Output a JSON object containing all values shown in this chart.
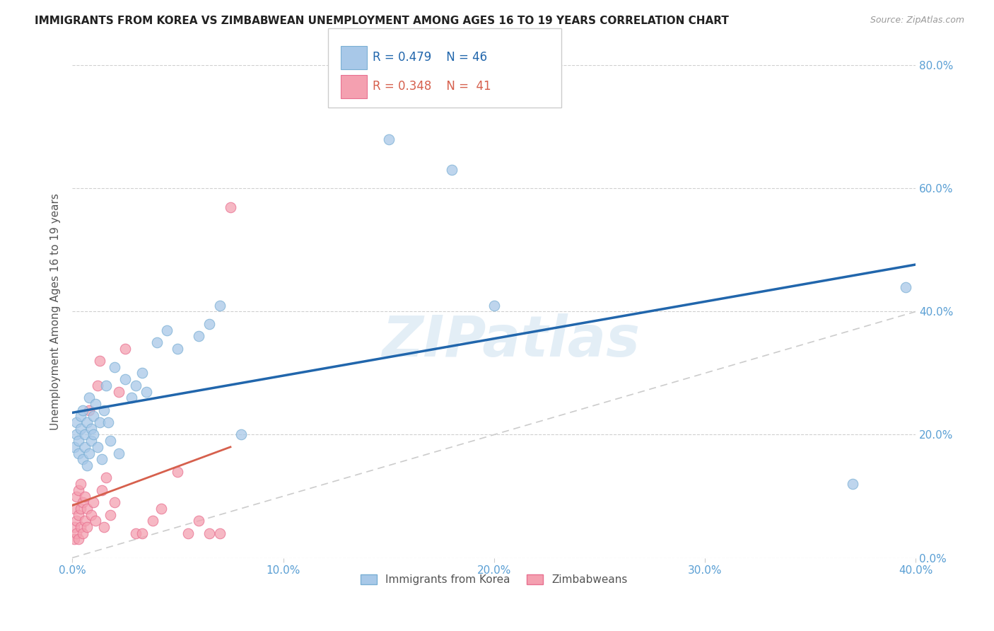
{
  "title": "IMMIGRANTS FROM KOREA VS ZIMBABWEAN UNEMPLOYMENT AMONG AGES 16 TO 19 YEARS CORRELATION CHART",
  "source": "Source: ZipAtlas.com",
  "ylabel": "Unemployment Among Ages 16 to 19 years",
  "xlabel_ticks": [
    "0.0%",
    "10.0%",
    "20.0%",
    "30.0%",
    "40.0%"
  ],
  "ylabel_ticks": [
    "0.0%",
    "20.0%",
    "40.0%",
    "60.0%",
    "80.0%"
  ],
  "xlim": [
    0.0,
    0.4
  ],
  "ylim": [
    0.0,
    0.8
  ],
  "legend_label1": "Immigrants from Korea",
  "legend_label2": "Zimbabweans",
  "R1": "0.479",
  "N1": "46",
  "R2": "0.348",
  "N2": "41",
  "color_blue": "#a8c8e8",
  "color_pink": "#f4a0b0",
  "color_blue_edge": "#7aafd4",
  "color_pink_edge": "#e87090",
  "color_line_blue": "#2166ac",
  "color_line_pink": "#d6604d",
  "color_diag": "#cccccc",
  "watermark": "ZIPatlas",
  "korea_x": [
    0.001,
    0.002,
    0.002,
    0.003,
    0.003,
    0.004,
    0.004,
    0.005,
    0.005,
    0.006,
    0.006,
    0.007,
    0.007,
    0.008,
    0.008,
    0.009,
    0.009,
    0.01,
    0.01,
    0.011,
    0.012,
    0.013,
    0.014,
    0.015,
    0.016,
    0.017,
    0.018,
    0.02,
    0.022,
    0.025,
    0.028,
    0.03,
    0.033,
    0.035,
    0.04,
    0.045,
    0.05,
    0.06,
    0.065,
    0.07,
    0.08,
    0.15,
    0.18,
    0.2,
    0.37,
    0.395
  ],
  "korea_y": [
    0.18,
    0.2,
    0.22,
    0.19,
    0.17,
    0.21,
    0.23,
    0.16,
    0.24,
    0.18,
    0.2,
    0.22,
    0.15,
    0.17,
    0.26,
    0.21,
    0.19,
    0.23,
    0.2,
    0.25,
    0.18,
    0.22,
    0.16,
    0.24,
    0.28,
    0.22,
    0.19,
    0.31,
    0.17,
    0.29,
    0.26,
    0.28,
    0.3,
    0.27,
    0.35,
    0.37,
    0.34,
    0.36,
    0.38,
    0.41,
    0.2,
    0.68,
    0.63,
    0.41,
    0.12,
    0.44
  ],
  "zimbabwe_x": [
    0.001,
    0.001,
    0.001,
    0.002,
    0.002,
    0.002,
    0.003,
    0.003,
    0.003,
    0.004,
    0.004,
    0.004,
    0.005,
    0.005,
    0.006,
    0.006,
    0.007,
    0.007,
    0.008,
    0.009,
    0.01,
    0.011,
    0.012,
    0.013,
    0.014,
    0.015,
    0.016,
    0.018,
    0.02,
    0.022,
    0.025,
    0.03,
    0.033,
    0.038,
    0.042,
    0.05,
    0.055,
    0.06,
    0.065,
    0.07,
    0.075
  ],
  "zimbabwe_y": [
    0.03,
    0.05,
    0.08,
    0.04,
    0.06,
    0.1,
    0.03,
    0.07,
    0.11,
    0.05,
    0.08,
    0.12,
    0.04,
    0.09,
    0.06,
    0.1,
    0.05,
    0.08,
    0.24,
    0.07,
    0.09,
    0.06,
    0.28,
    0.32,
    0.11,
    0.05,
    0.13,
    0.07,
    0.09,
    0.27,
    0.34,
    0.04,
    0.04,
    0.06,
    0.08,
    0.14,
    0.04,
    0.06,
    0.04,
    0.04,
    0.57
  ]
}
